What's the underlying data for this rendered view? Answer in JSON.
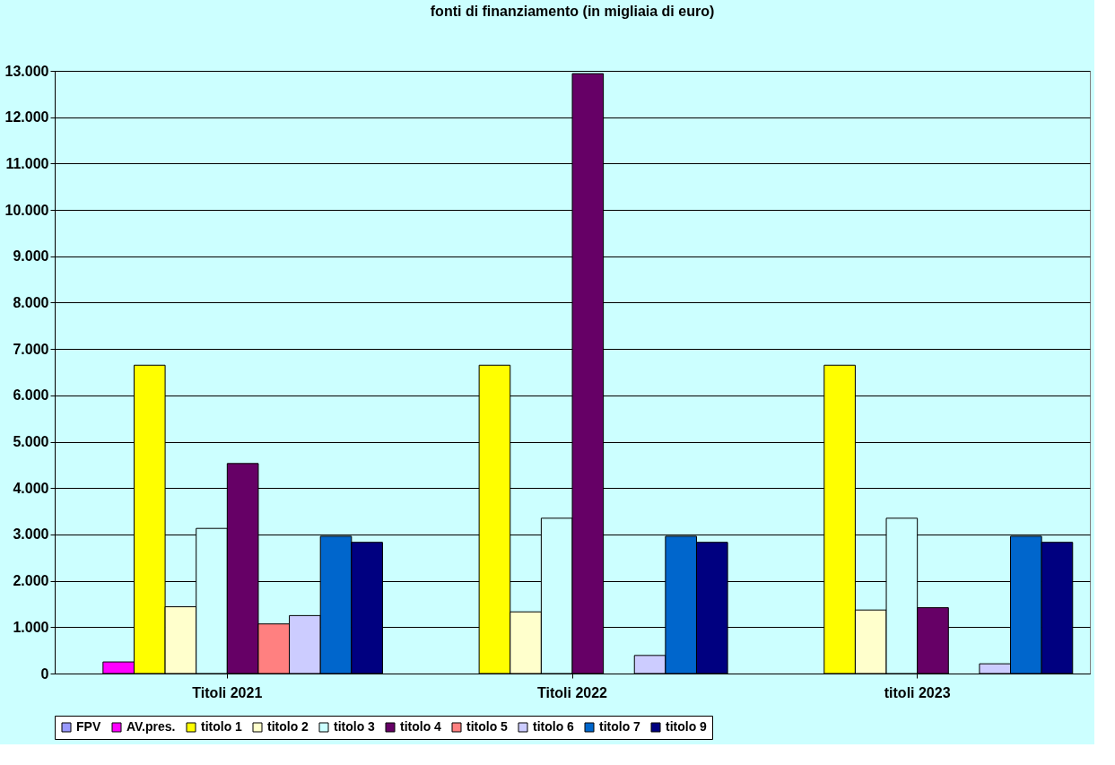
{
  "chart_data": {
    "type": "bar",
    "title": "fonti di finanziamento (in migliaia di euro)",
    "categories": [
      "Titoli 2021",
      "Titoli 2022",
      "titoli 2023"
    ],
    "series": [
      {
        "name": "FPV",
        "color": "#9999ff",
        "values": [
          0,
          0,
          0
        ]
      },
      {
        "name": "AV.pres.",
        "color": "#ff00ff",
        "values": [
          250,
          0,
          0
        ]
      },
      {
        "name": "titolo 1",
        "color": "#ffff00",
        "values": [
          6650,
          6650,
          6650
        ]
      },
      {
        "name": "titolo 2",
        "color": "#ffffcc",
        "values": [
          1440,
          1330,
          1370
        ]
      },
      {
        "name": "titolo 3",
        "color": "#ccffff",
        "values": [
          3130,
          3350,
          3350
        ]
      },
      {
        "name": "titolo 4",
        "color": "#660066",
        "values": [
          4530,
          12940,
          1420
        ]
      },
      {
        "name": "titolo 5",
        "color": "#ff8080",
        "values": [
          1070,
          0,
          0
        ]
      },
      {
        "name": "titolo 6",
        "color": "#ccccff",
        "values": [
          1250,
          390,
          210
        ]
      },
      {
        "name": "titolo 7",
        "color": "#0066cc",
        "values": [
          2960,
          2960,
          2960
        ]
      },
      {
        "name": "titolo 9",
        "color": "#000080",
        "values": [
          2830,
          2830,
          2830
        ]
      }
    ],
    "ylim": [
      0,
      13000
    ],
    "yticks": [
      {
        "value": 0,
        "label": "0"
      },
      {
        "value": 1000,
        "label": "1.000"
      },
      {
        "value": 2000,
        "label": "2.000"
      },
      {
        "value": 3000,
        "label": "3.000"
      },
      {
        "value": 4000,
        "label": "4.000"
      },
      {
        "value": 5000,
        "label": "5.000"
      },
      {
        "value": 6000,
        "label": "6.000"
      },
      {
        "value": 7000,
        "label": "7.000"
      },
      {
        "value": 8000,
        "label": "8.000"
      },
      {
        "value": 9000,
        "label": "9.000"
      },
      {
        "value": 10000,
        "label": "10.000"
      },
      {
        "value": 11000,
        "label": "11.000"
      },
      {
        "value": 12000,
        "label": "12.000"
      },
      {
        "value": 13000,
        "label": "13.000"
      }
    ],
    "grid": "y",
    "legend": "bottom"
  }
}
